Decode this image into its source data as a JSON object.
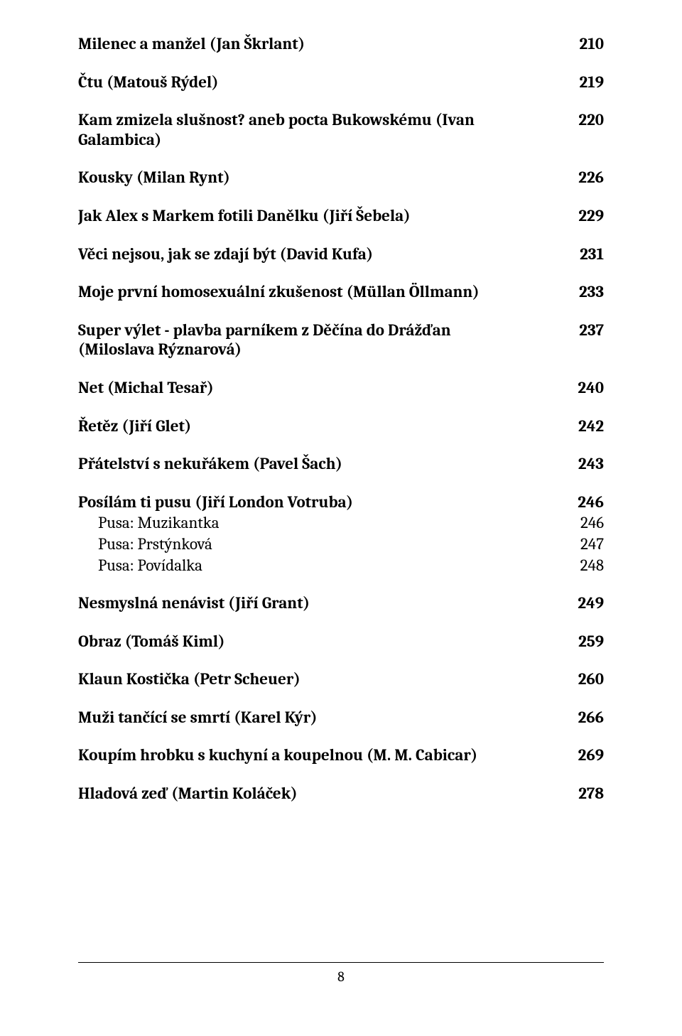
{
  "entries": [
    {
      "title": "Milenec a manžel (Jan Škrlant)",
      "page": "210"
    },
    {
      "title": "Čtu (Matouš Rýdel)",
      "page": "219"
    },
    {
      "title": "Kam zmizela slušnost? aneb pocta Bukowskému (Ivan Galambica)",
      "page": "220"
    },
    {
      "title": "Kousky (Milan Rynt)",
      "page": "226"
    },
    {
      "title": "Jak Alex s Markem fotili Danělku (Jiří Šebela)",
      "page": "229"
    },
    {
      "title": "Věci nejsou, jak se zdají být (David Kufa)",
      "page": "231"
    },
    {
      "title": "Moje první homosexuální zkušenost (Müllan Öllmann)",
      "page": "233"
    },
    {
      "title": "Super výlet - plavba parníkem z Děčína do Drážďan (Miloslava Rýznarová)",
      "page": "237"
    },
    {
      "title": "Net (Michal Tesař)",
      "page": "240"
    },
    {
      "title": "Řetěz (Jiří Glet)",
      "page": "242"
    },
    {
      "title": "Přátelství s nekuřákem (Pavel Šach)",
      "page": "243"
    },
    {
      "group": true,
      "head": {
        "title": "Posílám ti pusu (Jiří London Votruba)",
        "page": "246"
      },
      "subs": [
        {
          "title": "Pusa: Muzikantka",
          "page": "246"
        },
        {
          "title": "Pusa: Prstýnková",
          "page": "247"
        },
        {
          "title": "Pusa: Povídalka",
          "page": "248"
        }
      ]
    },
    {
      "title": "Nesmyslná nenávist (Jiří Grant)",
      "page": "249"
    },
    {
      "title": "Obraz (Tomáš Kiml)",
      "page": "259"
    },
    {
      "title": "Klaun Kostička (Petr Scheuer)",
      "page": "260"
    },
    {
      "title": "Muži tančící se smrtí (Karel Kýr)",
      "page": "266"
    },
    {
      "title": "Koupím hrobku s kuchyní a koupelnou (M. M. Cabicar)",
      "page": "269"
    },
    {
      "title": "Hladová zeď (Martin Koláček)",
      "page": "278"
    }
  ],
  "footer_page": "8"
}
